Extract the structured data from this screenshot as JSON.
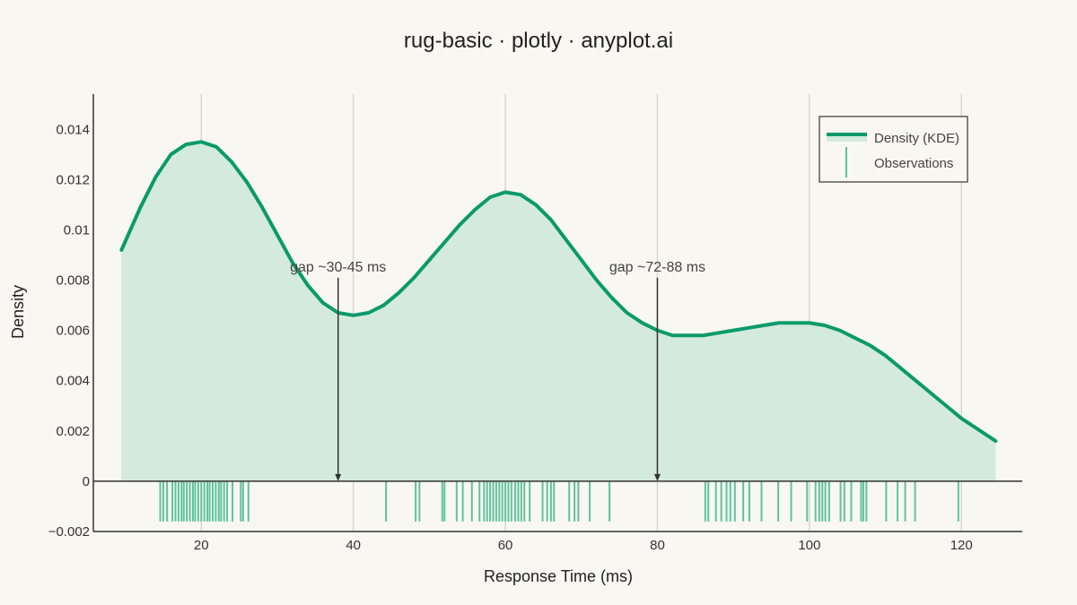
{
  "chart_data": {
    "type": "line",
    "title": "rug-basic · plotly · anyplot.ai",
    "xlabel": "Response Time (ms)",
    "ylabel": "Density",
    "xlim": [
      5.8,
      128
    ],
    "ylim": [
      -0.002,
      0.0154
    ],
    "x_ticks": [
      20,
      40,
      60,
      80,
      100,
      120
    ],
    "x_tick_labels": [
      "20",
      "40",
      "60",
      "80",
      "100",
      "120"
    ],
    "y_ticks": [
      -0.002,
      0,
      0.002,
      0.004,
      0.006,
      0.008,
      0.01,
      0.012,
      0.014
    ],
    "y_tick_labels": [
      "−0.002",
      "0",
      "0.002",
      "0.004",
      "0.006",
      "0.008",
      "0.01",
      "0.012",
      "0.014"
    ],
    "grid": {
      "x": true,
      "y": false
    },
    "legend_position": "top-right",
    "colors": {
      "line": "#0a9a6c",
      "fill": "#d4eadc",
      "rug": "#5fc39e",
      "grid": "#d9d6cf",
      "axis": "#333333",
      "annotation": "#333333"
    },
    "series": [
      {
        "name": "Density (KDE)",
        "x": [
          9.5,
          12,
          14,
          16,
          18,
          20,
          22,
          24,
          26,
          28,
          30,
          32,
          34,
          36,
          38,
          40,
          42,
          44,
          46,
          48,
          50,
          52,
          54,
          56,
          58,
          60,
          62,
          64,
          66,
          68,
          70,
          72,
          74,
          76,
          78,
          80,
          82,
          84,
          86,
          88,
          90,
          92,
          94,
          96,
          98,
          100,
          102,
          104,
          106,
          108,
          110,
          112,
          114,
          116,
          118,
          120,
          122,
          124.5
        ],
        "y": [
          0.0092,
          0.0109,
          0.0121,
          0.013,
          0.0134,
          0.0135,
          0.0133,
          0.0127,
          0.0119,
          0.0109,
          0.0098,
          0.0087,
          0.0078,
          0.0071,
          0.0067,
          0.0066,
          0.0067,
          0.007,
          0.0075,
          0.0081,
          0.0088,
          0.0095,
          0.0102,
          0.0108,
          0.0113,
          0.0115,
          0.0114,
          0.011,
          0.0104,
          0.0096,
          0.0088,
          0.008,
          0.0073,
          0.0067,
          0.0063,
          0.006,
          0.0058,
          0.0058,
          0.0058,
          0.0059,
          0.006,
          0.0061,
          0.0062,
          0.0063,
          0.0063,
          0.0063,
          0.0062,
          0.006,
          0.0057,
          0.0054,
          0.005,
          0.0045,
          0.004,
          0.0035,
          0.003,
          0.0025,
          0.0021,
          0.0016
        ]
      },
      {
        "name": "Observations",
        "type": "rug",
        "y_range": [
          -0.0016,
          0
        ],
        "x": [
          14.6,
          15.0,
          15.5,
          16.2,
          16.6,
          17.0,
          17.4,
          17.7,
          18.1,
          18.5,
          18.9,
          19.2,
          19.6,
          20.0,
          20.4,
          20.8,
          21.1,
          21.5,
          21.9,
          22.3,
          22.6,
          23.0,
          23.4,
          24.1,
          25.2,
          25.5,
          26.2,
          44.3,
          48.2,
          48.7,
          51.7,
          52.0,
          53.6,
          54.4,
          55.6,
          56.6,
          57.2,
          57.6,
          58.0,
          58.4,
          58.8,
          59.2,
          59.6,
          60.0,
          60.4,
          60.8,
          61.3,
          61.7,
          62.1,
          62.5,
          63.2,
          64.9,
          65.5,
          66.0,
          66.4,
          68.4,
          69.1,
          69.6,
          71.1,
          73.7,
          86.3,
          86.7,
          87.7,
          88.4,
          89.1,
          89.6,
          90.2,
          91.3,
          92.1,
          93.7,
          95.9,
          97.6,
          99.7,
          100.8,
          101.3,
          101.7,
          102.1,
          102.6,
          104.1,
          104.6,
          105.5,
          106.8,
          107.1,
          107.5,
          110.1,
          111.6,
          112.6,
          113.9,
          119.6
        ]
      }
    ],
    "annotations": [
      {
        "text": "gap ~30-45 ms",
        "x": 38,
        "y_text": 0.0082,
        "y_arrow": 0
      },
      {
        "text": "gap ~72-88 ms",
        "x": 80,
        "y_text": 0.0082,
        "y_arrow": 0
      }
    ]
  }
}
